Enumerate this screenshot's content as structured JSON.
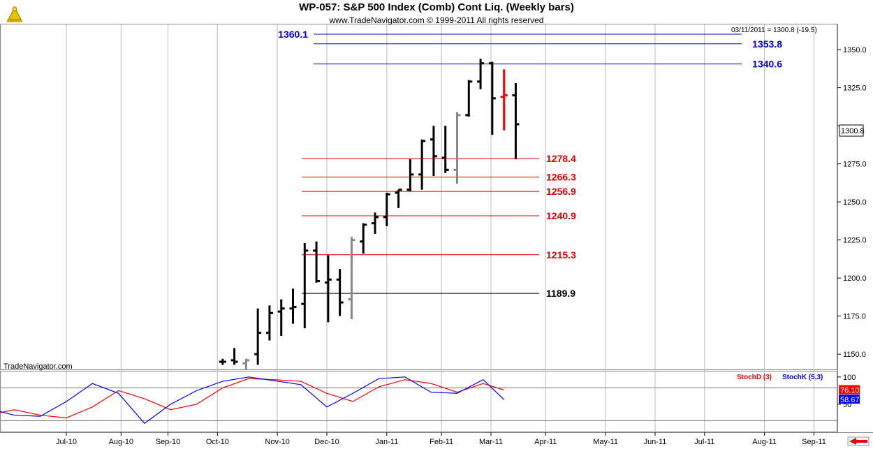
{
  "header": {
    "title": "WP-057:  S&P 500 Index (Comb) Cont Liq.  (Weekly bars)",
    "subtitle": "www.TradeNavigator.com © 1999-2011 All rights reserved",
    "last_info": "03/11/2011 = 1300.8 (-19.5)",
    "watermark": "TradeNavigator.com"
  },
  "colors": {
    "bar": "#000000",
    "bar_gray": "#888888",
    "bar_red": "#ff0000",
    "level_red": "#dd0000",
    "level_blue": "#0000cc",
    "level_black": "#000000",
    "stochD": "#ff0000",
    "stochK": "#0000ff",
    "logo": "#d4b000",
    "nav_arrow": "#ee0000"
  },
  "chart_data": [
    {
      "type": "ohlc",
      "title": "WP-057:  S&P 500 Index (Comb) Cont Liq.  (Weekly bars)",
      "ylim": [
        1140,
        1367
      ],
      "yticks": [
        1150.0,
        1175.0,
        1200.0,
        1225.0,
        1250.0,
        1275.0,
        1300.0,
        1325.0,
        1350.0
      ],
      "ytick_labels": [
        "1150.0",
        "1175.0",
        "1200.0",
        "1225.0",
        "1250.0",
        "1275.0",
        "",
        "1325.0",
        "1350.0"
      ],
      "last_value": "1300.8",
      "x_months": [
        {
          "label": "Jul-10",
          "week": 0.0
        },
        {
          "label": "Aug-10",
          "week": 4.2
        },
        {
          "label": "Sep-10",
          "week": 7.8
        },
        {
          "label": "Oct-10",
          "week": 11.6
        },
        {
          "label": "Nov-10",
          "week": 16.2
        },
        {
          "label": "Dec-10",
          "week": 20.0
        },
        {
          "label": "Jan-11",
          "week": 24.6
        },
        {
          "label": "Feb-11",
          "week": 28.8
        },
        {
          "label": "Mar-11",
          "week": 32.6
        },
        {
          "label": "Apr-11",
          "week": 36.8
        },
        {
          "label": "May-11",
          "week": 41.4
        },
        {
          "label": "Jun-11",
          "week": 45.2
        },
        {
          "label": "Jul-11",
          "week": 49.0
        },
        {
          "label": "Aug-11",
          "week": 53.6
        },
        {
          "label": "Sep-11",
          "week": 57.4
        }
      ],
      "bars": [
        {
          "week": 12.0,
          "open": 1145,
          "high": 1147,
          "low": 1143,
          "close": 1145,
          "color": "black"
        },
        {
          "week": 12.9,
          "open": 1146,
          "high": 1154,
          "low": 1143,
          "close": 1145,
          "color": "black"
        },
        {
          "week": 13.8,
          "open": 1144,
          "high": 1147,
          "low": 1140,
          "close": 1146,
          "color": "gray"
        },
        {
          "week": 14.7,
          "open": 1150,
          "high": 1180,
          "low": 1143,
          "close": 1164,
          "color": "black"
        },
        {
          "week": 15.6,
          "open": 1164,
          "high": 1182,
          "low": 1159,
          "close": 1177,
          "color": "black"
        },
        {
          "week": 16.5,
          "open": 1178,
          "high": 1186,
          "low": 1162,
          "close": 1180,
          "color": "black"
        },
        {
          "week": 17.4,
          "open": 1180,
          "high": 1193,
          "low": 1170,
          "close": 1181,
          "color": "black"
        },
        {
          "week": 18.3,
          "open": 1183,
          "high": 1223,
          "low": 1167,
          "close": 1218,
          "color": "black"
        },
        {
          "week": 19.2,
          "open": 1218,
          "high": 1224,
          "low": 1197,
          "close": 1198,
          "color": "black"
        },
        {
          "week": 20.1,
          "open": 1197,
          "high": 1215,
          "low": 1171,
          "close": 1199,
          "color": "black"
        },
        {
          "week": 21.0,
          "open": 1199,
          "high": 1206,
          "low": 1175,
          "close": 1184,
          "color": "black"
        },
        {
          "week": 21.9,
          "open": 1186,
          "high": 1227,
          "low": 1173,
          "close": 1225,
          "color": "gray"
        },
        {
          "week": 22.8,
          "open": 1224,
          "high": 1236,
          "low": 1216,
          "close": 1235,
          "color": "black"
        },
        {
          "week": 23.7,
          "open": 1236,
          "high": 1243,
          "low": 1229,
          "close": 1240,
          "color": "black"
        },
        {
          "week": 24.6,
          "open": 1240,
          "high": 1256,
          "low": 1234,
          "close": 1255,
          "color": "black"
        },
        {
          "week": 25.5,
          "open": 1256,
          "high": 1258,
          "low": 1246,
          "close": 1258,
          "color": "black"
        },
        {
          "week": 26.4,
          "open": 1258,
          "high": 1278,
          "low": 1257,
          "close": 1268,
          "color": "black"
        },
        {
          "week": 27.3,
          "open": 1268,
          "high": 1291,
          "low": 1258,
          "close": 1290,
          "color": "black"
        },
        {
          "week": 28.2,
          "open": 1291,
          "high": 1300,
          "low": 1267,
          "close": 1280,
          "color": "black"
        },
        {
          "week": 29.1,
          "open": 1279,
          "high": 1300,
          "low": 1269,
          "close": 1271,
          "color": "black"
        },
        {
          "week": 30.0,
          "open": 1271,
          "high": 1309,
          "low": 1262,
          "close": 1307,
          "color": "gray"
        },
        {
          "week": 30.9,
          "open": 1307,
          "high": 1330,
          "low": 1306,
          "close": 1329,
          "color": "black"
        },
        {
          "week": 31.8,
          "open": 1329,
          "high": 1344,
          "low": 1324,
          "close": 1341,
          "color": "black"
        },
        {
          "week": 32.7,
          "open": 1341,
          "high": 1342,
          "low": 1294,
          "close": 1318,
          "color": "black"
        },
        {
          "week": 33.6,
          "open": 1319,
          "high": 1337,
          "low": 1297,
          "close": 1320,
          "color": "red"
        },
        {
          "week": 34.5,
          "open": 1320,
          "high": 1328,
          "low": 1278,
          "close": 1301,
          "color": "black"
        }
      ],
      "levels": [
        {
          "label": "1360.1",
          "value": 1360.1,
          "color": "blue"
        },
        {
          "label": "1353.8",
          "value": 1353.8,
          "color": "blue"
        },
        {
          "label": "1340.6",
          "value": 1340.6,
          "color": "blue"
        },
        {
          "label": "1278.4",
          "value": 1278.4,
          "color": "red"
        },
        {
          "label": "1266.3",
          "value": 1266.3,
          "color": "red"
        },
        {
          "label": "1256.9",
          "value": 1256.9,
          "color": "red"
        },
        {
          "label": "1240.9",
          "value": 1240.9,
          "color": "red"
        },
        {
          "label": "1215.3",
          "value": 1215.3,
          "color": "red"
        },
        {
          "label": "1189.9",
          "value": 1189.9,
          "color": "black"
        }
      ]
    },
    {
      "type": "line",
      "ylim": [
        0,
        110
      ],
      "yticks": [
        100,
        50
      ],
      "ytick_labels": [
        "100",
        "50"
      ],
      "reference_lines": [
        80,
        20
      ],
      "series": [
        {
          "name": "StochD (3)",
          "last": "76.10",
          "x": [
            -10,
            -8,
            -6,
            -4,
            -2,
            0,
            2,
            4,
            6,
            8,
            10,
            12,
            14,
            16,
            18,
            20,
            22,
            24,
            26,
            28,
            30,
            32,
            33.6
          ],
          "values": [
            10,
            15,
            30,
            40,
            30,
            25,
            45,
            75,
            60,
            40,
            50,
            80,
            97,
            95,
            92,
            70,
            55,
            82,
            95,
            88,
            72,
            88,
            76.1
          ]
        },
        {
          "name": "StochK (5,3)",
          "last": "58.67",
          "x": [
            -10,
            -8,
            -6,
            -4,
            -2,
            0,
            2,
            4,
            6,
            8,
            10,
            12,
            14,
            16,
            18,
            20,
            22,
            24,
            26,
            28,
            30,
            32,
            33.6
          ],
          "values": [
            8,
            25,
            42,
            30,
            28,
            55,
            88,
            70,
            15,
            50,
            75,
            92,
            100,
            93,
            86,
            45,
            70,
            97,
            100,
            72,
            70,
            95,
            58.67
          ]
        }
      ]
    }
  ]
}
